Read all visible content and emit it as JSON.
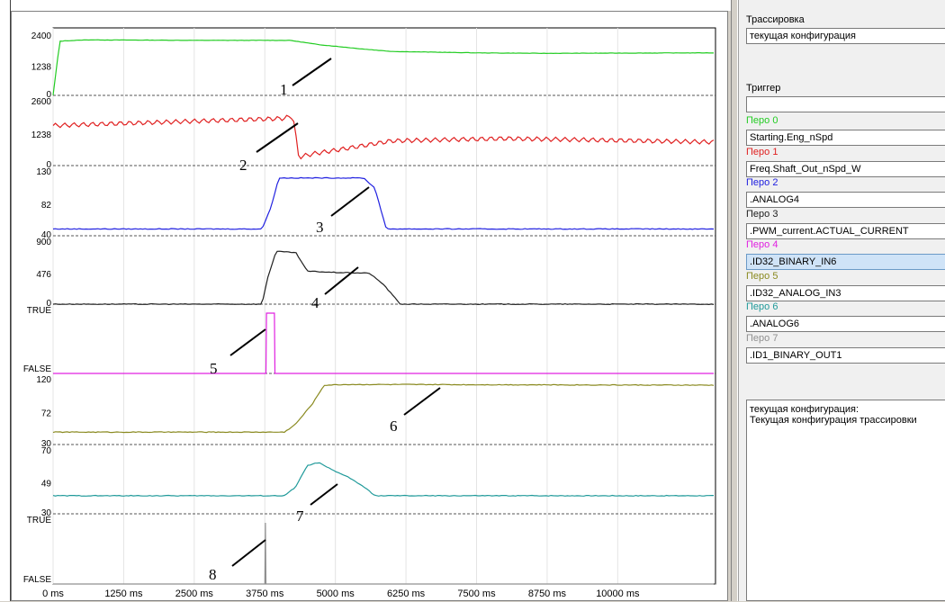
{
  "plot": {
    "x_ticks": [
      "0 ms",
      "1250 ms",
      "2500 ms",
      "3750 ms",
      "5000 ms",
      "6250 ms",
      "7500 ms",
      "8750 ms",
      "10000 ms"
    ],
    "lanes": [
      {
        "pen": 0,
        "color": "#22cc22",
        "type": "analog",
        "ticks": [
          "2400",
          "1238",
          "0"
        ],
        "annotation": "1"
      },
      {
        "pen": 1,
        "color": "#e02020",
        "type": "analog",
        "ticks": [
          "2600",
          "1238",
          "0"
        ],
        "annotation": "2"
      },
      {
        "pen": 2,
        "color": "#2020e0",
        "type": "analog",
        "ticks": [
          "130",
          "82",
          "40"
        ],
        "annotation": "3"
      },
      {
        "pen": 3,
        "color": "#202020",
        "type": "analog",
        "ticks": [
          "900",
          "476",
          "0"
        ],
        "annotation": "4"
      },
      {
        "pen": 4,
        "color": "#e020e0",
        "type": "binary",
        "ticks": [
          "TRUE",
          "FALSE"
        ],
        "annotation": "5"
      },
      {
        "pen": 5,
        "color": "#8a8a20",
        "type": "analog",
        "ticks": [
          "120",
          "72",
          "30"
        ],
        "annotation": "6"
      },
      {
        "pen": 6,
        "color": "#209a9a",
        "type": "analog",
        "ticks": [
          "70",
          "49",
          "30"
        ],
        "annotation": "7"
      },
      {
        "pen": 7,
        "color": "#909090",
        "type": "binary",
        "ticks": [
          "TRUE",
          "FALSE"
        ],
        "annotation": "8"
      }
    ]
  },
  "chart_data": {
    "type": "line",
    "x_unit": "ms",
    "xlim": [
      0,
      11700
    ],
    "series": [
      {
        "name": "Starting.Eng_nSpd",
        "ylim": [
          0,
          2400
        ],
        "x": [
          0,
          120,
          600,
          2500,
          4200,
          4700,
          5500,
          6000,
          7500,
          8750,
          10000,
          11700
        ],
        "values": [
          0,
          2300,
          2350,
          2330,
          2330,
          2150,
          1960,
          1860,
          1800,
          1780,
          1790,
          1800
        ]
      },
      {
        "name": "Freq.Shaft_Out_nSpd_W",
        "ylim": [
          0,
          2600
        ],
        "x": [
          0,
          4050,
          4250,
          4350,
          4600,
          5000,
          6000,
          8000,
          11700
        ],
        "values": [
          1700,
          2000,
          2100,
          360,
          500,
          650,
          1050,
          1150,
          1000
        ]
      },
      {
        "name": ".ANALOG4",
        "ylim": [
          40,
          130
        ],
        "x": [
          0,
          3700,
          3850,
          4000,
          5500,
          5700,
          5900,
          11700
        ],
        "values": [
          50,
          50,
          80,
          125,
          125,
          110,
          50,
          50
        ]
      },
      {
        "name": ".PWM_current.ACTUAL_CURRENT",
        "ylim": [
          0,
          900
        ],
        "x": [
          0,
          3700,
          3800,
          3950,
          4300,
          4500,
          5000,
          5600,
          5850,
          6000,
          6150,
          11700
        ],
        "values": [
          0,
          0,
          400,
          800,
          780,
          500,
          480,
          470,
          300,
          150,
          0,
          0
        ]
      },
      {
        "name": ".ID32_BINARY_IN6",
        "ylim": [
          0,
          1
        ],
        "x": [
          0,
          3770,
          3780,
          3920,
          3930,
          11700
        ],
        "values": [
          0,
          0,
          1,
          1,
          0,
          0
        ]
      },
      {
        "name": ".ID32_ANALOG_IN3",
        "ylim": [
          30,
          120
        ],
        "x": [
          0,
          4100,
          4300,
          4600,
          4800,
          5200,
          6000,
          11700
        ],
        "values": [
          48,
          48,
          60,
          90,
          116,
          117,
          117,
          116
        ]
      },
      {
        "name": ".ANALOG6",
        "ylim": [
          30,
          70
        ],
        "x": [
          0,
          4100,
          4300,
          4500,
          4700,
          5000,
          5200,
          5500,
          5700,
          11700
        ],
        "values": [
          42,
          42,
          48,
          62,
          64,
          58,
          55,
          48,
          42,
          42
        ]
      },
      {
        "name": ".ID1_BINARY_OUT1",
        "ylim": [
          0,
          1
        ],
        "x": [
          0,
          3750,
          3760,
          3770,
          11700
        ],
        "values": [
          0,
          0,
          1,
          0,
          0
        ]
      }
    ]
  },
  "panel": {
    "trace_label": "Трассировка",
    "trace_value": "текущая конфигурация",
    "trigger_label": "Триггер",
    "trigger_value": "",
    "pens": [
      {
        "label": "Перо 0",
        "color": "#22cc22",
        "value": "Starting.Eng_nSpd"
      },
      {
        "label": "Перо 1",
        "color": "#e02020",
        "value": "Freq.Shaft_Out_nSpd_W"
      },
      {
        "label": "Перо 2",
        "color": "#2020e0",
        "value": ".ANALOG4"
      },
      {
        "label": "Перо 3",
        "color": "#202020",
        "value": ".PWM_current.ACTUAL_CURRENT"
      },
      {
        "label": "Перо 4",
        "color": "#e020e0",
        "value": ".ID32_BINARY_IN6"
      },
      {
        "label": "Перо 5",
        "color": "#8a8a20",
        "value": ".ID32_ANALOG_IN3"
      },
      {
        "label": "Перо 6",
        "color": "#209a9a",
        "value": ".ANALOG6"
      },
      {
        "label": "Перо 7",
        "color": "#909090",
        "value": ".ID1_BINARY_OUT1"
      }
    ],
    "description_line1": "текущая конфигурация:",
    "description_line2": "Текущая конфигурация трассировки"
  }
}
